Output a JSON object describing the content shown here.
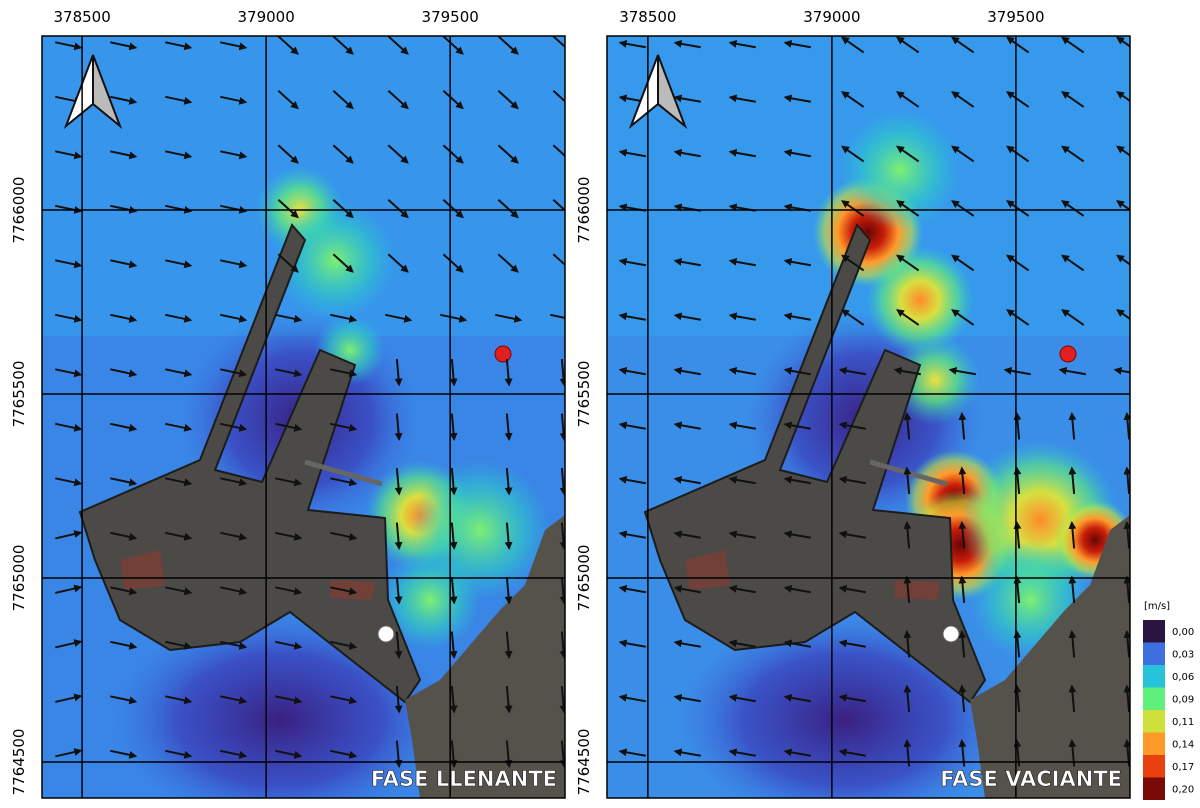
{
  "panels": [
    {
      "title": "FASE LLENANTE",
      "xlim": [
        378391,
        379812
      ],
      "ylim": [
        7764402,
        7766473
      ],
      "xticks": [
        378500,
        379000,
        379500
      ],
      "yticks": [
        7764500,
        7765000,
        7765500,
        7766000
      ]
    },
    {
      "title": "FASE VACIANTE",
      "xlim": [
        378389,
        379810
      ],
      "ylim": [
        7764402,
        7766473
      ],
      "xticks": [
        378500,
        379000,
        379500
      ],
      "yticks": [
        7764500,
        7765000,
        7765500,
        7766000
      ]
    }
  ],
  "legend": {
    "title": "[m/s]",
    "items": [
      {
        "label": "0,00",
        "color": "#2a1540"
      },
      {
        "label": "0,03",
        "color": "#3d6fe0"
      },
      {
        "label": "0,06",
        "color": "#27c3d8"
      },
      {
        "label": "0,09",
        "color": "#5ef07a"
      },
      {
        "label": "0,11",
        "color": "#cfe03a"
      },
      {
        "label": "0,14",
        "color": "#ff9a2a"
      },
      {
        "label": "0,17",
        "color": "#e8400f"
      },
      {
        "label": "0,20",
        "color": "#7a0a05"
      }
    ]
  }
}
